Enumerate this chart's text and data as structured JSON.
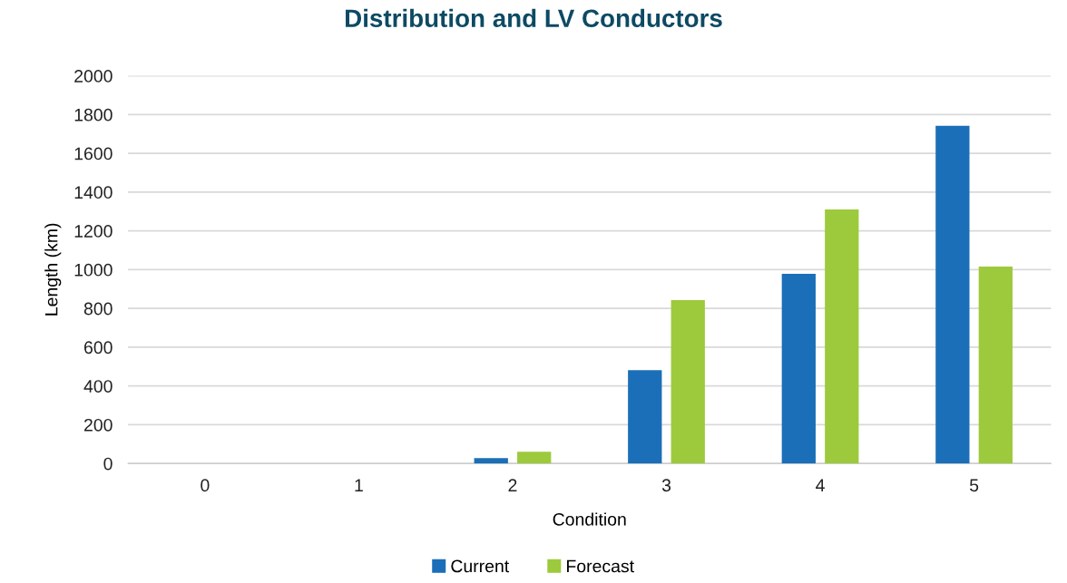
{
  "chart_data": {
    "type": "bar",
    "title": "Distribution and LV Conductors",
    "xlabel": "Condition",
    "ylabel": "Length (km)",
    "categories": [
      "0",
      "1",
      "2",
      "3",
      "4",
      "5"
    ],
    "series": [
      {
        "name": "Current",
        "color": "#1b6fb8",
        "values": [
          0,
          0,
          28,
          482,
          979,
          1742
        ]
      },
      {
        "name": "Forecast",
        "color": "#9dca3c",
        "values": [
          0,
          0,
          61,
          843,
          1311,
          1016
        ]
      }
    ],
    "ylim": [
      0,
      2000
    ],
    "yticks": [
      0,
      200,
      400,
      600,
      800,
      1000,
      1200,
      1400,
      1600,
      1800,
      2000
    ],
    "grid": "y",
    "legend": "bottom"
  }
}
